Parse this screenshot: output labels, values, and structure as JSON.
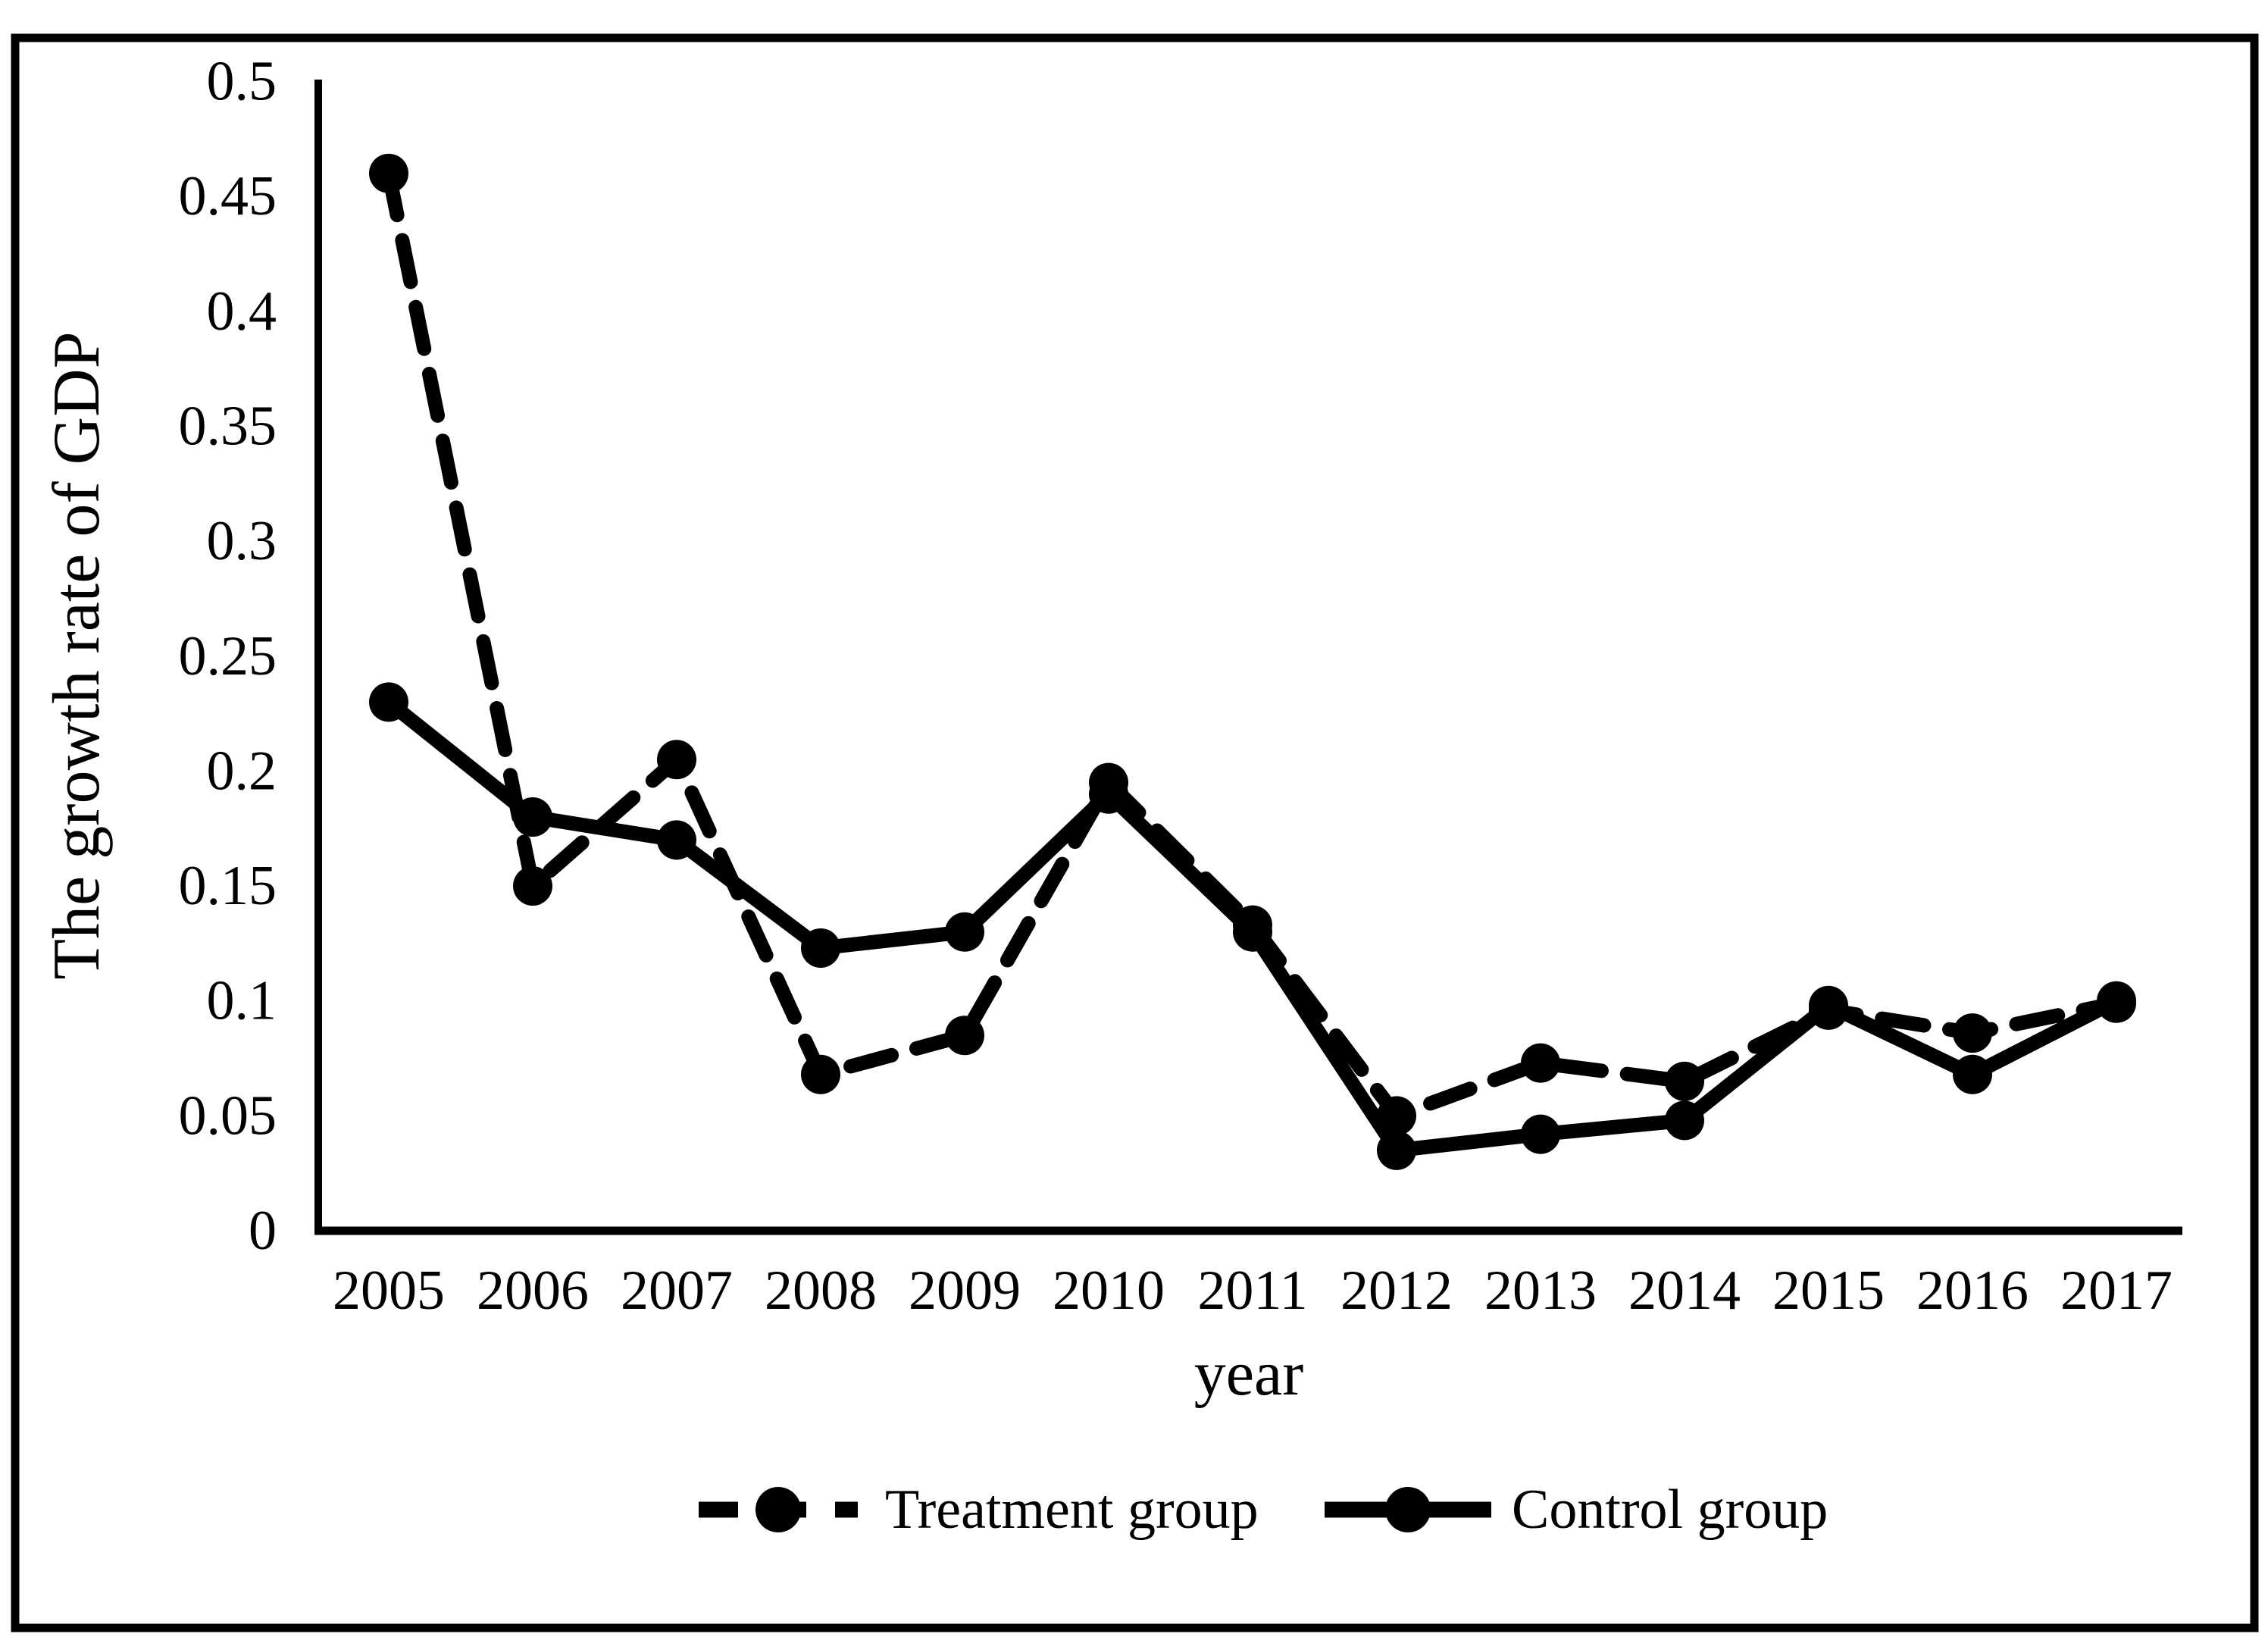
{
  "figure": {
    "background": "#ffffff",
    "border_color": "#000000",
    "line_color": "#000000"
  },
  "chart_data": {
    "type": "line",
    "title": "",
    "xlabel": "year",
    "ylabel": "The growth rate of GDP",
    "x": [
      2005,
      2006,
      2007,
      2008,
      2009,
      2010,
      2011,
      2012,
      2013,
      2014,
      2015,
      2016,
      2017
    ],
    "series": [
      {
        "name": "Treatment group",
        "line_style": "dashed",
        "marker": "circle",
        "color": "#000000",
        "values": [
          0.46,
          0.15,
          0.205,
          0.068,
          0.085,
          0.195,
          0.133,
          0.05,
          0.073,
          0.065,
          0.096,
          0.086,
          0.099
        ]
      },
      {
        "name": "Control group",
        "line_style": "solid",
        "marker": "circle",
        "color": "#000000",
        "values": [
          0.23,
          0.18,
          0.17,
          0.123,
          0.13,
          0.19,
          0.13,
          0.035,
          0.042,
          0.048,
          0.098,
          0.068,
          0.1
        ]
      }
    ],
    "ylim": [
      0,
      0.5
    ],
    "yticks": [
      {
        "v": 0,
        "label": "0"
      },
      {
        "v": 0.05,
        "label": "0.05"
      },
      {
        "v": 0.1,
        "label": "0.1"
      },
      {
        "v": 0.15,
        "label": "0.15"
      },
      {
        "v": 0.2,
        "label": "0.2"
      },
      {
        "v": 0.25,
        "label": "0.25"
      },
      {
        "v": 0.3,
        "label": "0.3"
      },
      {
        "v": 0.35,
        "label": "0.35"
      },
      {
        "v": 0.4,
        "label": "0.4"
      },
      {
        "v": 0.45,
        "label": "0.45"
      },
      {
        "v": 0.5,
        "label": "0.5"
      }
    ],
    "grid": false,
    "legend_position": "bottom-center"
  }
}
